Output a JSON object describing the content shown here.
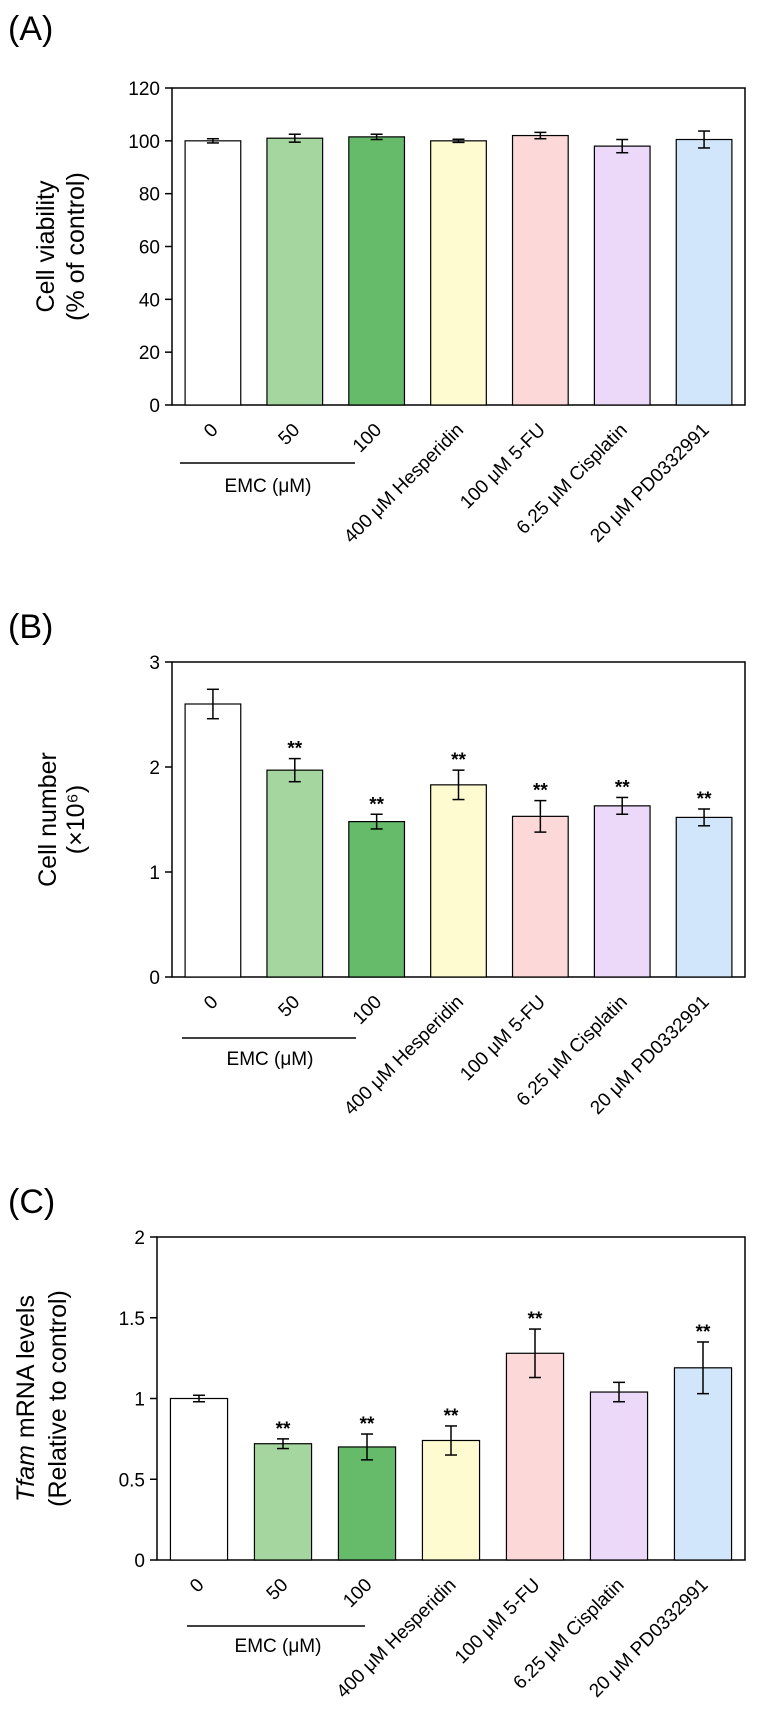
{
  "chart_data": [
    {
      "type": "bar",
      "panel_label": "(A)",
      "ylabel_lines": [
        "Cell viability",
        "(% of control)"
      ],
      "ylim": [
        0,
        120
      ],
      "yticks": [
        "0",
        "20",
        "40",
        "60",
        "80",
        "100",
        "120"
      ],
      "ytick_values": [
        0,
        20,
        40,
        60,
        80,
        100,
        120
      ],
      "categories": [
        "0",
        "50",
        "100",
        "400 μM Hesperidin",
        "100 μM 5-FU",
        "6.25 μM Cisplatin",
        "20 μM PD0332991"
      ],
      "values": [
        100,
        101,
        101.5,
        100,
        102,
        98,
        100.5
      ],
      "errors": [
        0.8,
        1.5,
        1.0,
        0.6,
        1.2,
        2.5,
        3.2
      ],
      "significance": [
        "",
        "",
        "",
        "",
        "",
        "",
        ""
      ],
      "colors": [
        "#ffffff",
        "#a5d6a0",
        "#66bb6a",
        "#fffbd0",
        "#fdd8d8",
        "#ecd8f8",
        "#d2e6fb"
      ],
      "group_label": "EMC (μM)"
    },
    {
      "type": "bar",
      "panel_label": "(B)",
      "ylabel_lines": [
        "Cell number",
        "(×10⁶)"
      ],
      "ylim": [
        0,
        3
      ],
      "yticks": [
        "0",
        "1",
        "2",
        "3"
      ],
      "ytick_values": [
        0,
        1,
        2,
        3
      ],
      "categories": [
        "0",
        "50",
        "100",
        "400 μM Hesperidin",
        "100 μM 5-FU",
        "6.25 μM Cisplatin",
        "20 μM PD0332991"
      ],
      "values": [
        2.6,
        1.97,
        1.48,
        1.83,
        1.53,
        1.63,
        1.52
      ],
      "errors": [
        0.14,
        0.11,
        0.07,
        0.14,
        0.15,
        0.08,
        0.08
      ],
      "significance": [
        "",
        "**",
        "**",
        "**",
        "**",
        "**",
        "**"
      ],
      "colors": [
        "#ffffff",
        "#a5d6a0",
        "#66bb6a",
        "#fffbd0",
        "#fdd8d8",
        "#ecd8f8",
        "#d2e6fb"
      ],
      "group_label": "EMC (μM)"
    },
    {
      "type": "bar",
      "panel_label": "(C)",
      "ylabel_italic": "Tfam",
      "ylabel_lines": [
        " mRNA levels",
        "(Relative to control)"
      ],
      "ylim": [
        0,
        2
      ],
      "yticks": [
        "0",
        "0.5",
        "1",
        "1.5",
        "2"
      ],
      "ytick_values": [
        0,
        0.5,
        1,
        1.5,
        2
      ],
      "categories": [
        "0",
        "50",
        "100",
        "400 μM Hesperidin",
        "100 μM 5-FU",
        "6.25 μM Cisplatin",
        "20 μM PD0332991"
      ],
      "values": [
        1.0,
        0.72,
        0.7,
        0.74,
        1.28,
        1.04,
        1.19
      ],
      "errors": [
        0.02,
        0.03,
        0.08,
        0.09,
        0.15,
        0.06,
        0.16
      ],
      "significance": [
        "",
        "**",
        "**",
        "**",
        "**",
        "",
        "**"
      ],
      "colors": [
        "#ffffff",
        "#a5d6a0",
        "#66bb6a",
        "#fffbd0",
        "#fdd8d8",
        "#ecd8f8",
        "#d2e6fb"
      ],
      "group_label": "EMC (μM)"
    }
  ]
}
